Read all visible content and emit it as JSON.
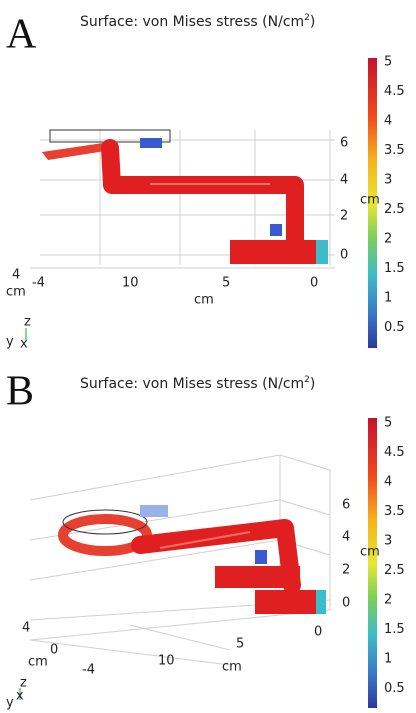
{
  "panels": [
    {
      "label": "A",
      "title": "Surface: von Mises stress (N/cm",
      "title_superscript": "2",
      "title_close": ")",
      "colorbar_ticks": [
        "5",
        "4.5",
        "4",
        "3.5",
        "3",
        "2.5",
        "2",
        "1.5",
        "1",
        "0.5"
      ],
      "vertical_ticks": [
        "6",
        "4",
        "2",
        "0"
      ],
      "vertical_unit": "cm",
      "depth_ticks": [
        "4"
      ],
      "depth_unit": "cm",
      "horizontal_ticks": [
        "-4",
        "10",
        "5",
        "0"
      ],
      "horizontal_unit": "cm",
      "triad": [
        "z",
        "y",
        "x"
      ]
    },
    {
      "label": "B",
      "title": "Surface: von Mises stress (N/cm",
      "title_superscript": "2",
      "title_close": ")",
      "colorbar_ticks": [
        "5",
        "4.5",
        "4",
        "3.5",
        "3",
        "2.5",
        "2",
        "1.5",
        "1",
        "0.5"
      ],
      "vertical_ticks": [
        "6",
        "4",
        "2",
        "0"
      ],
      "vertical_unit": "cm",
      "depth_ticks": [
        "4",
        "0",
        "-4"
      ],
      "depth_unit": "cm",
      "horizontal_ticks": [
        "10",
        "5",
        "0"
      ],
      "horizontal_unit": "cm",
      "triad": [
        "z",
        "y",
        "x"
      ]
    }
  ]
}
